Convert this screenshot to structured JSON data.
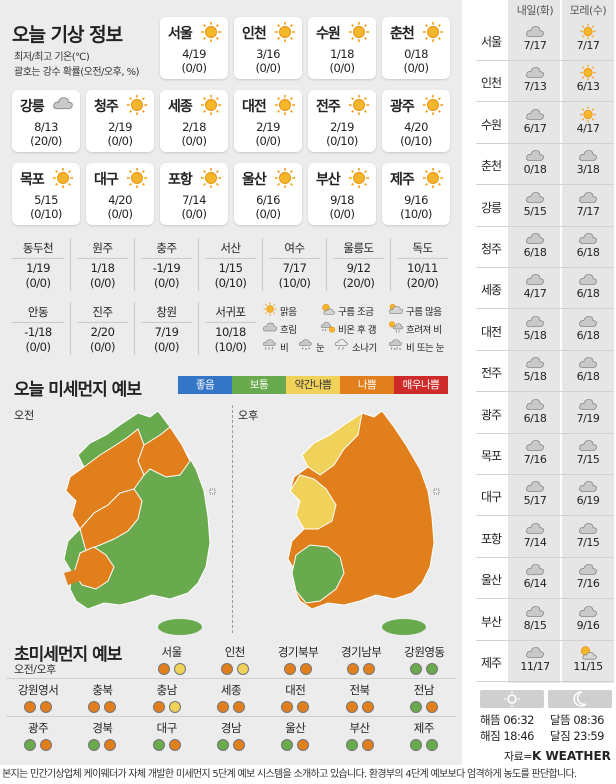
{
  "colors": {
    "good": "#3575c7",
    "normal": "#6aaa4f",
    "bad_mild": "#f0d25a",
    "bad": "#e17f1c",
    "very_bad": "#cf2a2a",
    "sun": "#f4a11b"
  },
  "header": {
    "title": "오늘 기상 정보",
    "sub1": "최저/최고 기온(℃)",
    "sub2": "괄호는 강수 확률(오전/오후, %)"
  },
  "cities": [
    {
      "name": "서울",
      "temp": "4/19",
      "pop": "(0/0)",
      "icon": "sun-icon"
    },
    {
      "name": "인천",
      "temp": "3/16",
      "pop": "(0/0)",
      "icon": "sun-icon"
    },
    {
      "name": "수원",
      "temp": "1/18",
      "pop": "(0/0)",
      "icon": "sun-icon"
    },
    {
      "name": "춘천",
      "temp": "0/18",
      "pop": "(0/0)",
      "icon": "sun-icon"
    },
    {
      "name": "강릉",
      "temp": "8/13",
      "pop": "(20/0)",
      "icon": "cloud-icon"
    },
    {
      "name": "청주",
      "temp": "2/19",
      "pop": "(0/0)",
      "icon": "sun-icon"
    },
    {
      "name": "세종",
      "temp": "2/18",
      "pop": "(0/0)",
      "icon": "sun-icon"
    },
    {
      "name": "대전",
      "temp": "2/19",
      "pop": "(0/0)",
      "icon": "sun-icon"
    },
    {
      "name": "전주",
      "temp": "2/19",
      "pop": "(0/10)",
      "icon": "sun-icon"
    },
    {
      "name": "광주",
      "temp": "4/20",
      "pop": "(0/10)",
      "icon": "sun-icon"
    },
    {
      "name": "목포",
      "temp": "5/15",
      "pop": "(0/10)",
      "icon": "sun-icon"
    },
    {
      "name": "대구",
      "temp": "4/20",
      "pop": "(0/0)",
      "icon": "sun-icon"
    },
    {
      "name": "포항",
      "temp": "7/14",
      "pop": "(0/0)",
      "icon": "sun-icon"
    },
    {
      "name": "울산",
      "temp": "6/16",
      "pop": "(0/0)",
      "icon": "sun-icon"
    },
    {
      "name": "부산",
      "temp": "9/18",
      "pop": "(0/0)",
      "icon": "sun-icon"
    },
    {
      "name": "제주",
      "temp": "9/16",
      "pop": "(10/0)",
      "icon": "sun-icon"
    }
  ],
  "small_row1": [
    {
      "name": "동두천",
      "temp": "1/19",
      "pop": "(0/0)"
    },
    {
      "name": "원주",
      "temp": "1/18",
      "pop": "(0/0)"
    },
    {
      "name": "충주",
      "temp": "-1/19",
      "pop": "(0/0)"
    },
    {
      "name": "서산",
      "temp": "1/15",
      "pop": "(0/10)"
    },
    {
      "name": "여수",
      "temp": "7/17",
      "pop": "(10/0)"
    },
    {
      "name": "울릉도",
      "temp": "9/12",
      "pop": "(20/0)"
    },
    {
      "name": "독도",
      "temp": "10/11",
      "pop": "(20/0)"
    }
  ],
  "small_row2": [
    {
      "name": "안동",
      "temp": "-1/18",
      "pop": "(0/0)"
    },
    {
      "name": "진주",
      "temp": "2/20",
      "pop": "(0/0)"
    },
    {
      "name": "창원",
      "temp": "7/19",
      "pop": "(0/0)"
    },
    {
      "name": "서귀포",
      "temp": "10/18",
      "pop": "(10/0)"
    }
  ],
  "legend": [
    {
      "label": "맑음",
      "icon": "sun-icon"
    },
    {
      "label": "구름 조금",
      "icon": "sun-cloud-icon"
    },
    {
      "label": "구름 많음",
      "icon": "cloud-sun-icon"
    },
    {
      "label": "흐림",
      "icon": "cloud-icon"
    },
    {
      "label": "비온 후 갬",
      "icon": "rain-sun-icon"
    },
    {
      "label": "흐려져 비",
      "icon": "sun-rain-icon"
    },
    {
      "label": "비",
      "icon": "rain-icon"
    },
    {
      "label": "눈",
      "icon": "snow-icon"
    },
    {
      "label": "소나기",
      "icon": "shower-icon"
    },
    {
      "label": "비 또는 눈",
      "icon": "sleet-icon"
    }
  ],
  "dust": {
    "title": "오늘 미세먼지 예보",
    "am": "오전",
    "pm": "오후",
    "scale": [
      "좋음",
      "보통",
      "약간나쁨",
      "나쁨",
      "매우나쁨"
    ]
  },
  "ufine": {
    "title": "초미세먼지 예보",
    "sub": "오전/오후",
    "rows": [
      [
        {
          "name": "서울",
          "am": "bad",
          "pm": "bad_mild"
        },
        {
          "name": "인천",
          "am": "bad",
          "pm": "bad_mild"
        },
        {
          "name": "경기북부",
          "am": "bad",
          "pm": "bad"
        },
        {
          "name": "경기남부",
          "am": "bad",
          "pm": "bad"
        },
        {
          "name": "강원영동",
          "am": "normal",
          "pm": "normal"
        }
      ],
      [
        {
          "name": "강원영서",
          "am": "bad",
          "pm": "bad"
        },
        {
          "name": "충북",
          "am": "bad",
          "pm": "bad"
        },
        {
          "name": "충남",
          "am": "bad",
          "pm": "bad_mild"
        },
        {
          "name": "세종",
          "am": "bad",
          "pm": "bad"
        },
        {
          "name": "대전",
          "am": "bad",
          "pm": "bad"
        },
        {
          "name": "전북",
          "am": "bad",
          "pm": "bad"
        },
        {
          "name": "전남",
          "am": "normal",
          "pm": "bad"
        }
      ],
      [
        {
          "name": "광주",
          "am": "normal",
          "pm": "bad"
        },
        {
          "name": "경북",
          "am": "normal",
          "pm": "bad"
        },
        {
          "name": "대구",
          "am": "normal",
          "pm": "bad"
        },
        {
          "name": "경남",
          "am": "normal",
          "pm": "bad"
        },
        {
          "name": "울산",
          "am": "normal",
          "pm": "bad"
        },
        {
          "name": "부산",
          "am": "normal",
          "pm": "bad"
        },
        {
          "name": "제주",
          "am": "normal",
          "pm": "normal"
        }
      ]
    ]
  },
  "forecast": {
    "head": [
      "내일(화)",
      "모레(수)"
    ],
    "rows": [
      {
        "city": "서울",
        "d1": "7/17",
        "i1": "cloud-icon",
        "d2": "7/17",
        "i2": "sun-icon"
      },
      {
        "city": "인천",
        "d1": "7/13",
        "i1": "cloud-icon",
        "d2": "6/13",
        "i2": "sun-icon"
      },
      {
        "city": "수원",
        "d1": "6/17",
        "i1": "cloud-icon",
        "d2": "4/17",
        "i2": "sun-icon"
      },
      {
        "city": "춘천",
        "d1": "0/18",
        "i1": "cloud-icon",
        "d2": "3/18",
        "i2": "cloud-icon"
      },
      {
        "city": "강릉",
        "d1": "5/15",
        "i1": "cloud-icon",
        "d2": "7/17",
        "i2": "cloud-icon"
      },
      {
        "city": "청주",
        "d1": "6/18",
        "i1": "cloud-icon",
        "d2": "6/18",
        "i2": "cloud-icon"
      },
      {
        "city": "세종",
        "d1": "4/17",
        "i1": "cloud-icon",
        "d2": "6/18",
        "i2": "cloud-icon"
      },
      {
        "city": "대전",
        "d1": "5/18",
        "i1": "cloud-icon",
        "d2": "6/18",
        "i2": "cloud-icon"
      },
      {
        "city": "전주",
        "d1": "5/18",
        "i1": "cloud-icon",
        "d2": "6/18",
        "i2": "cloud-icon"
      },
      {
        "city": "광주",
        "d1": "6/18",
        "i1": "cloud-icon",
        "d2": "7/19",
        "i2": "cloud-icon"
      },
      {
        "city": "목포",
        "d1": "7/16",
        "i1": "cloud-icon",
        "d2": "7/15",
        "i2": "cloud-icon"
      },
      {
        "city": "대구",
        "d1": "5/17",
        "i1": "cloud-icon",
        "d2": "6/19",
        "i2": "cloud-icon"
      },
      {
        "city": "포항",
        "d1": "7/14",
        "i1": "cloud-icon",
        "d2": "7/15",
        "i2": "cloud-icon"
      },
      {
        "city": "울산",
        "d1": "6/14",
        "i1": "cloud-icon",
        "d2": "7/16",
        "i2": "cloud-icon"
      },
      {
        "city": "부산",
        "d1": "8/15",
        "i1": "cloud-icon",
        "d2": "9/16",
        "i2": "cloud-icon"
      },
      {
        "city": "제주",
        "d1": "11/17",
        "i1": "cloud-icon",
        "d2": "11/15",
        "i2": "sun-cloud-icon"
      }
    ]
  },
  "sun": {
    "rise_label": "해뜸",
    "rise": "06:32",
    "set_label": "해짐",
    "set": "18:46",
    "mrise_label": "달뜸",
    "mrise": "08:36",
    "mset_label": "달짐",
    "mset": "23:59"
  },
  "source": {
    "label": "자료=",
    "brand": "K WEATHER"
  },
  "footer": "본지는 민간기상업체 케이웨더가 자체 개발한 미세먼지 5단계 예보 시스템을 소개하고 있습니다. 환경부의 4단계 예보보다 엄격하게 농도를 판단합니다."
}
